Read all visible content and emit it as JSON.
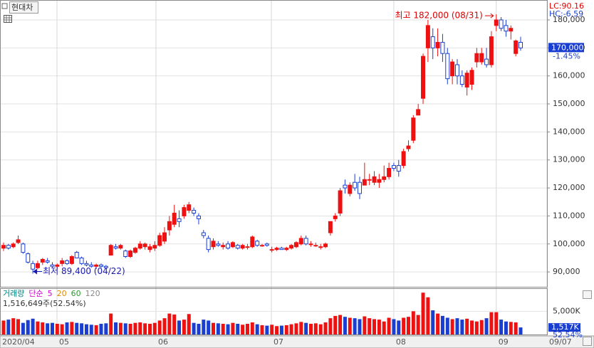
{
  "symbol": "현대차",
  "chart_data": {
    "type": "candlestick",
    "lc": "LC:90.16",
    "hc": "HC:-6.59",
    "xlim": [
      -0.73,
      111.4
    ],
    "xticks": [
      {
        "value": -0.73,
        "label": "2020/04"
      },
      {
        "value": 10.95,
        "label": "05"
      },
      {
        "value": 31.24,
        "label": "06"
      },
      {
        "value": 54.9,
        "label": "07"
      },
      {
        "value": 80.0,
        "label": "08"
      },
      {
        "value": 101.0,
        "label": "09"
      },
      {
        "value": 111.4,
        "label": "09/07"
      }
    ],
    "ylim": [
      84700,
      186600
    ],
    "yticks": [
      {
        "value": 90000,
        "label": "90,000"
      },
      {
        "value": 100000,
        "label": "100,000"
      },
      {
        "value": 110000,
        "label": "110,000"
      },
      {
        "value": 120000,
        "label": "120,000"
      },
      {
        "value": 130000,
        "label": "130,000"
      },
      {
        "value": 140000,
        "label": "140,000"
      },
      {
        "value": 150000,
        "label": "150,000"
      },
      {
        "value": 160000,
        "label": "160,000"
      },
      {
        "value": 170000,
        "label": "170,000"
      },
      {
        "value": 180000,
        "label": "180,000"
      }
    ],
    "grid": true,
    "up_color": "#ee1111",
    "down_color": "#1a3fd0",
    "open": [
      98500,
      99500,
      99000,
      100500,
      100000,
      96500,
      93000,
      91500,
      93500,
      94000,
      92500,
      92000,
      93000,
      94000,
      93000,
      97000,
      95000,
      93000,
      92500,
      92000,
      92500,
      92000,
      96000,
      99000,
      98500,
      97500,
      95500,
      97000,
      98500,
      99000,
      98000,
      98500,
      99500,
      101000,
      105000,
      107000,
      109000,
      110000,
      112000,
      112000,
      110000,
      104000,
      102000,
      99000,
      100000,
      99000,
      100000,
      99000,
      99500,
      98500,
      99000,
      99000,
      101000,
      99500,
      100000,
      98000,
      98000,
      98500,
      98000,
      98500,
      99000,
      100000,
      102000,
      100000,
      99500,
      99000,
      99000,
      104000,
      109000,
      111000,
      121000,
      118000,
      122000,
      122000,
      121000,
      123000,
      122000,
      122000,
      123000,
      124000,
      128000,
      128000,
      128000,
      134000,
      137000,
      146000,
      152000,
      170000,
      174000,
      170000,
      172000,
      168000,
      160000,
      164000,
      160000,
      156000,
      157000,
      165000,
      165000,
      166000,
      164000,
      178000,
      180000,
      178000,
      176000,
      168000,
      172000
    ],
    "high": [
      100500,
      100000,
      100500,
      103000,
      100500,
      97000,
      94000,
      94000,
      95000,
      95000,
      93500,
      93000,
      95000,
      94500,
      96000,
      97500,
      95500,
      94000,
      93500,
      93000,
      93000,
      92500,
      100000,
      100000,
      100000,
      98000,
      98000,
      99000,
      101000,
      100500,
      100000,
      101000,
      104000,
      106000,
      110000,
      114000,
      112000,
      114000,
      115000,
      113000,
      111000,
      105000,
      103000,
      102000,
      101000,
      100500,
      101000,
      101000,
      100000,
      100000,
      100000,
      103000,
      101500,
      100000,
      100500,
      99000,
      99000,
      99000,
      99000,
      100000,
      101000,
      103000,
      103000,
      101000,
      100500,
      100000,
      100500,
      108000,
      111000,
      120000,
      123000,
      122000,
      125000,
      124000,
      129000,
      125000,
      126000,
      125000,
      128000,
      129000,
      129000,
      130000,
      134000,
      137000,
      146000,
      150000,
      168000,
      180000,
      177000,
      177000,
      175000,
      170000,
      166000,
      166000,
      162000,
      162000,
      163000,
      170000,
      170000,
      170000,
      176000,
      182000,
      181000,
      180000,
      178000,
      173000,
      174000
    ],
    "low": [
      97500,
      98000,
      98500,
      100000,
      96500,
      93000,
      89400,
      91000,
      92500,
      93000,
      91500,
      91000,
      92000,
      92500,
      92500,
      95000,
      92500,
      92000,
      91500,
      91000,
      91500,
      91000,
      96000,
      98000,
      98000,
      95000,
      95000,
      96500,
      98000,
      98000,
      97000,
      97500,
      99000,
      100000,
      103000,
      106000,
      106000,
      109000,
      111000,
      110000,
      107000,
      102000,
      97000,
      98000,
      99000,
      98000,
      98000,
      98500,
      98000,
      98000,
      98000,
      98500,
      99000,
      99000,
      99000,
      97000,
      97500,
      98000,
      97500,
      98000,
      98500,
      99500,
      99500,
      99000,
      99000,
      98000,
      98500,
      103000,
      108000,
      110000,
      118000,
      117000,
      119000,
      116000,
      121000,
      121000,
      121000,
      120000,
      122000,
      123000,
      126000,
      124000,
      127000,
      133000,
      136000,
      146000,
      150000,
      165000,
      166000,
      167000,
      165000,
      157000,
      157000,
      157000,
      156000,
      153000,
      155000,
      163000,
      164000,
      163000,
      163000,
      176000,
      176000,
      174000,
      173000,
      167000,
      169000
    ],
    "close": [
      99500,
      98500,
      100000,
      101500,
      97000,
      93500,
      91000,
      93000,
      94500,
      93500,
      92000,
      92500,
      94000,
      93000,
      95500,
      95000,
      93000,
      92500,
      92000,
      92500,
      92000,
      91500,
      99500,
      98500,
      99500,
      95500,
      97500,
      98500,
      100000,
      100000,
      99000,
      99500,
      103000,
      104000,
      108000,
      111000,
      108000,
      113000,
      114000,
      111000,
      109000,
      103000,
      98000,
      101000,
      99500,
      99500,
      98500,
      100500,
      98500,
      99500,
      99000,
      102500,
      99500,
      99500,
      99500,
      98000,
      98500,
      98000,
      98500,
      99500,
      100500,
      102000,
      100000,
      100000,
      99500,
      99000,
      100000,
      108000,
      110000,
      119000,
      120000,
      121000,
      120000,
      118000,
      123000,
      123000,
      124000,
      123000,
      124000,
      127000,
      127000,
      126000,
      133000,
      135000,
      145000,
      148000,
      167000,
      178000,
      170000,
      172000,
      168000,
      159000,
      165000,
      160000,
      157000,
      161000,
      162000,
      168000,
      168000,
      164000,
      174000,
      180000,
      177000,
      176000,
      177000,
      172500,
      170000
    ],
    "annotations": {
      "high": "최고 182,000 (08/31)",
      "low": "최저 89,400 (04/22)"
    },
    "last_price": {
      "label": "170,000",
      "change": "-1.45%"
    },
    "volume": {
      "name": "거래량",
      "method": "단순",
      "ma_periods": [
        5,
        20,
        60,
        120
      ],
      "ma_colors": [
        "#cc00cc",
        "#e08a00",
        "#2a9a2a",
        "#888888"
      ],
      "name_color": "#008080",
      "caption": "1,516,649주(52.54%)",
      "ylim": [
        0,
        9800
      ],
      "yticks": [
        {
          "value": 5000,
          "label": "5,000K"
        }
      ],
      "last_label": "1,517K",
      "ratio": "52.54%",
      "values": [
        3000,
        3200,
        3500,
        3300,
        2500,
        3100,
        3400,
        2800,
        2600,
        2400,
        2500,
        2300,
        2200,
        2600,
        2700,
        2500,
        2400,
        2200,
        2100,
        2000,
        2300,
        2400,
        4500,
        2600,
        2500,
        2400,
        2300,
        2500,
        2600,
        2400,
        2300,
        2500,
        3000,
        3500,
        4500,
        4300,
        3000,
        3200,
        4400,
        2500,
        2300,
        3200,
        3000,
        2500,
        2400,
        2300,
        2200,
        2500,
        2300,
        2100,
        2300,
        2600,
        2200,
        2000,
        1900,
        2100,
        1800,
        1900,
        2000,
        2200,
        2400,
        2700,
        2500,
        2300,
        2400,
        2200,
        2600,
        3500,
        4000,
        4200,
        3800,
        3600,
        3500,
        3300,
        3900,
        3500,
        3300,
        3200,
        2800,
        3600,
        3300,
        3000,
        3600,
        3800,
        5000,
        4200,
        9000,
        8000,
        5200,
        4500,
        4000,
        3600,
        3300,
        3500,
        3200,
        3400,
        3000,
        2800,
        3100,
        3500,
        4800,
        4800,
        3200,
        2800,
        2700,
        2600,
        1516.649
      ]
    }
  }
}
